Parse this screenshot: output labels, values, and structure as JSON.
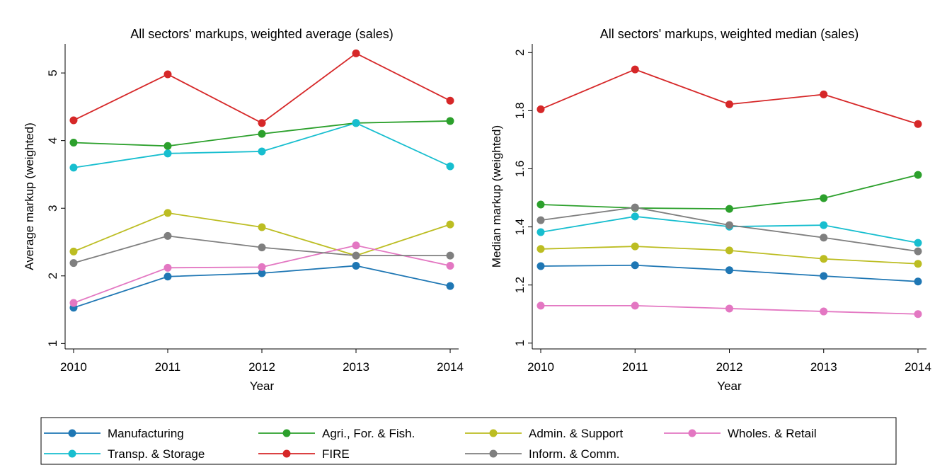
{
  "chart_data": [
    {
      "type": "line",
      "title": "All sectors' markups, weighted average (sales)",
      "x_label": "Year",
      "y_label": "Average markup (weighted)",
      "x": [
        2010,
        2011,
        2012,
        2013,
        2014
      ],
      "xlim": [
        2009.91,
        2014.09
      ],
      "xticks": [
        2010,
        2011,
        2012,
        2013,
        2014
      ],
      "ylim": [
        0.92,
        5.43
      ],
      "yticks": [
        1,
        2,
        3,
        4,
        5
      ],
      "series": [
        {
          "name": "Manufacturing",
          "color": "#1f77b4",
          "values": [
            1.53,
            1.99,
            2.04,
            2.15,
            1.85
          ]
        },
        {
          "name": "Agri., For. & Fish.",
          "color": "#2ca02c",
          "values": [
            3.97,
            3.92,
            4.1,
            4.26,
            4.29
          ]
        },
        {
          "name": "Admin. & Support",
          "color": "#bcbd22",
          "values": [
            2.36,
            2.93,
            2.72,
            2.3,
            2.76
          ]
        },
        {
          "name": "Wholes. & Retail",
          "color": "#e377c2",
          "values": [
            1.6,
            2.12,
            2.13,
            2.45,
            2.15
          ]
        },
        {
          "name": "Transp. & Storage",
          "color": "#17becf",
          "values": [
            3.6,
            3.81,
            3.84,
            4.26,
            3.62
          ]
        },
        {
          "name": "FIRE",
          "color": "#d62728",
          "values": [
            4.3,
            4.98,
            4.26,
            5.29,
            4.59
          ]
        },
        {
          "name": "Inform. & Comm.",
          "color": "#7f7f7f",
          "values": [
            2.19,
            2.59,
            2.42,
            2.3,
            2.3
          ]
        }
      ]
    },
    {
      "type": "line",
      "title": "All sectors' markups, weighted median (sales)",
      "x_label": "Year",
      "y_label": "Median markup (weighted)",
      "x": [
        2010,
        2011,
        2012,
        2013,
        2014
      ],
      "xlim": [
        2009.91,
        2014.09
      ],
      "xticks": [
        2010,
        2011,
        2012,
        2013,
        2014
      ],
      "ylim": [
        0.98,
        2.03
      ],
      "yticks": [
        1,
        1.2,
        1.4,
        1.6,
        1.8,
        2
      ],
      "series": [
        {
          "name": "Manufacturing",
          "color": "#1f77b4",
          "values": [
            1.265,
            1.268,
            1.251,
            1.231,
            1.212
          ]
        },
        {
          "name": "Agri., For. & Fish.",
          "color": "#2ca02c",
          "values": [
            1.477,
            1.465,
            1.462,
            1.499,
            1.579
          ]
        },
        {
          "name": "Admin. & Support",
          "color": "#bcbd22",
          "values": [
            1.324,
            1.333,
            1.319,
            1.29,
            1.273
          ]
        },
        {
          "name": "Wholes. & Retail",
          "color": "#e377c2",
          "values": [
            1.129,
            1.129,
            1.119,
            1.109,
            1.1
          ]
        },
        {
          "name": "Transp. & Storage",
          "color": "#17becf",
          "values": [
            1.382,
            1.436,
            1.401,
            1.406,
            1.345
          ]
        },
        {
          "name": "FIRE",
          "color": "#d62728",
          "values": [
            1.805,
            1.942,
            1.822,
            1.856,
            1.754
          ]
        },
        {
          "name": "Inform. & Comm.",
          "color": "#7f7f7f",
          "values": [
            1.423,
            1.467,
            1.406,
            1.363,
            1.316
          ]
        }
      ]
    }
  ]
}
